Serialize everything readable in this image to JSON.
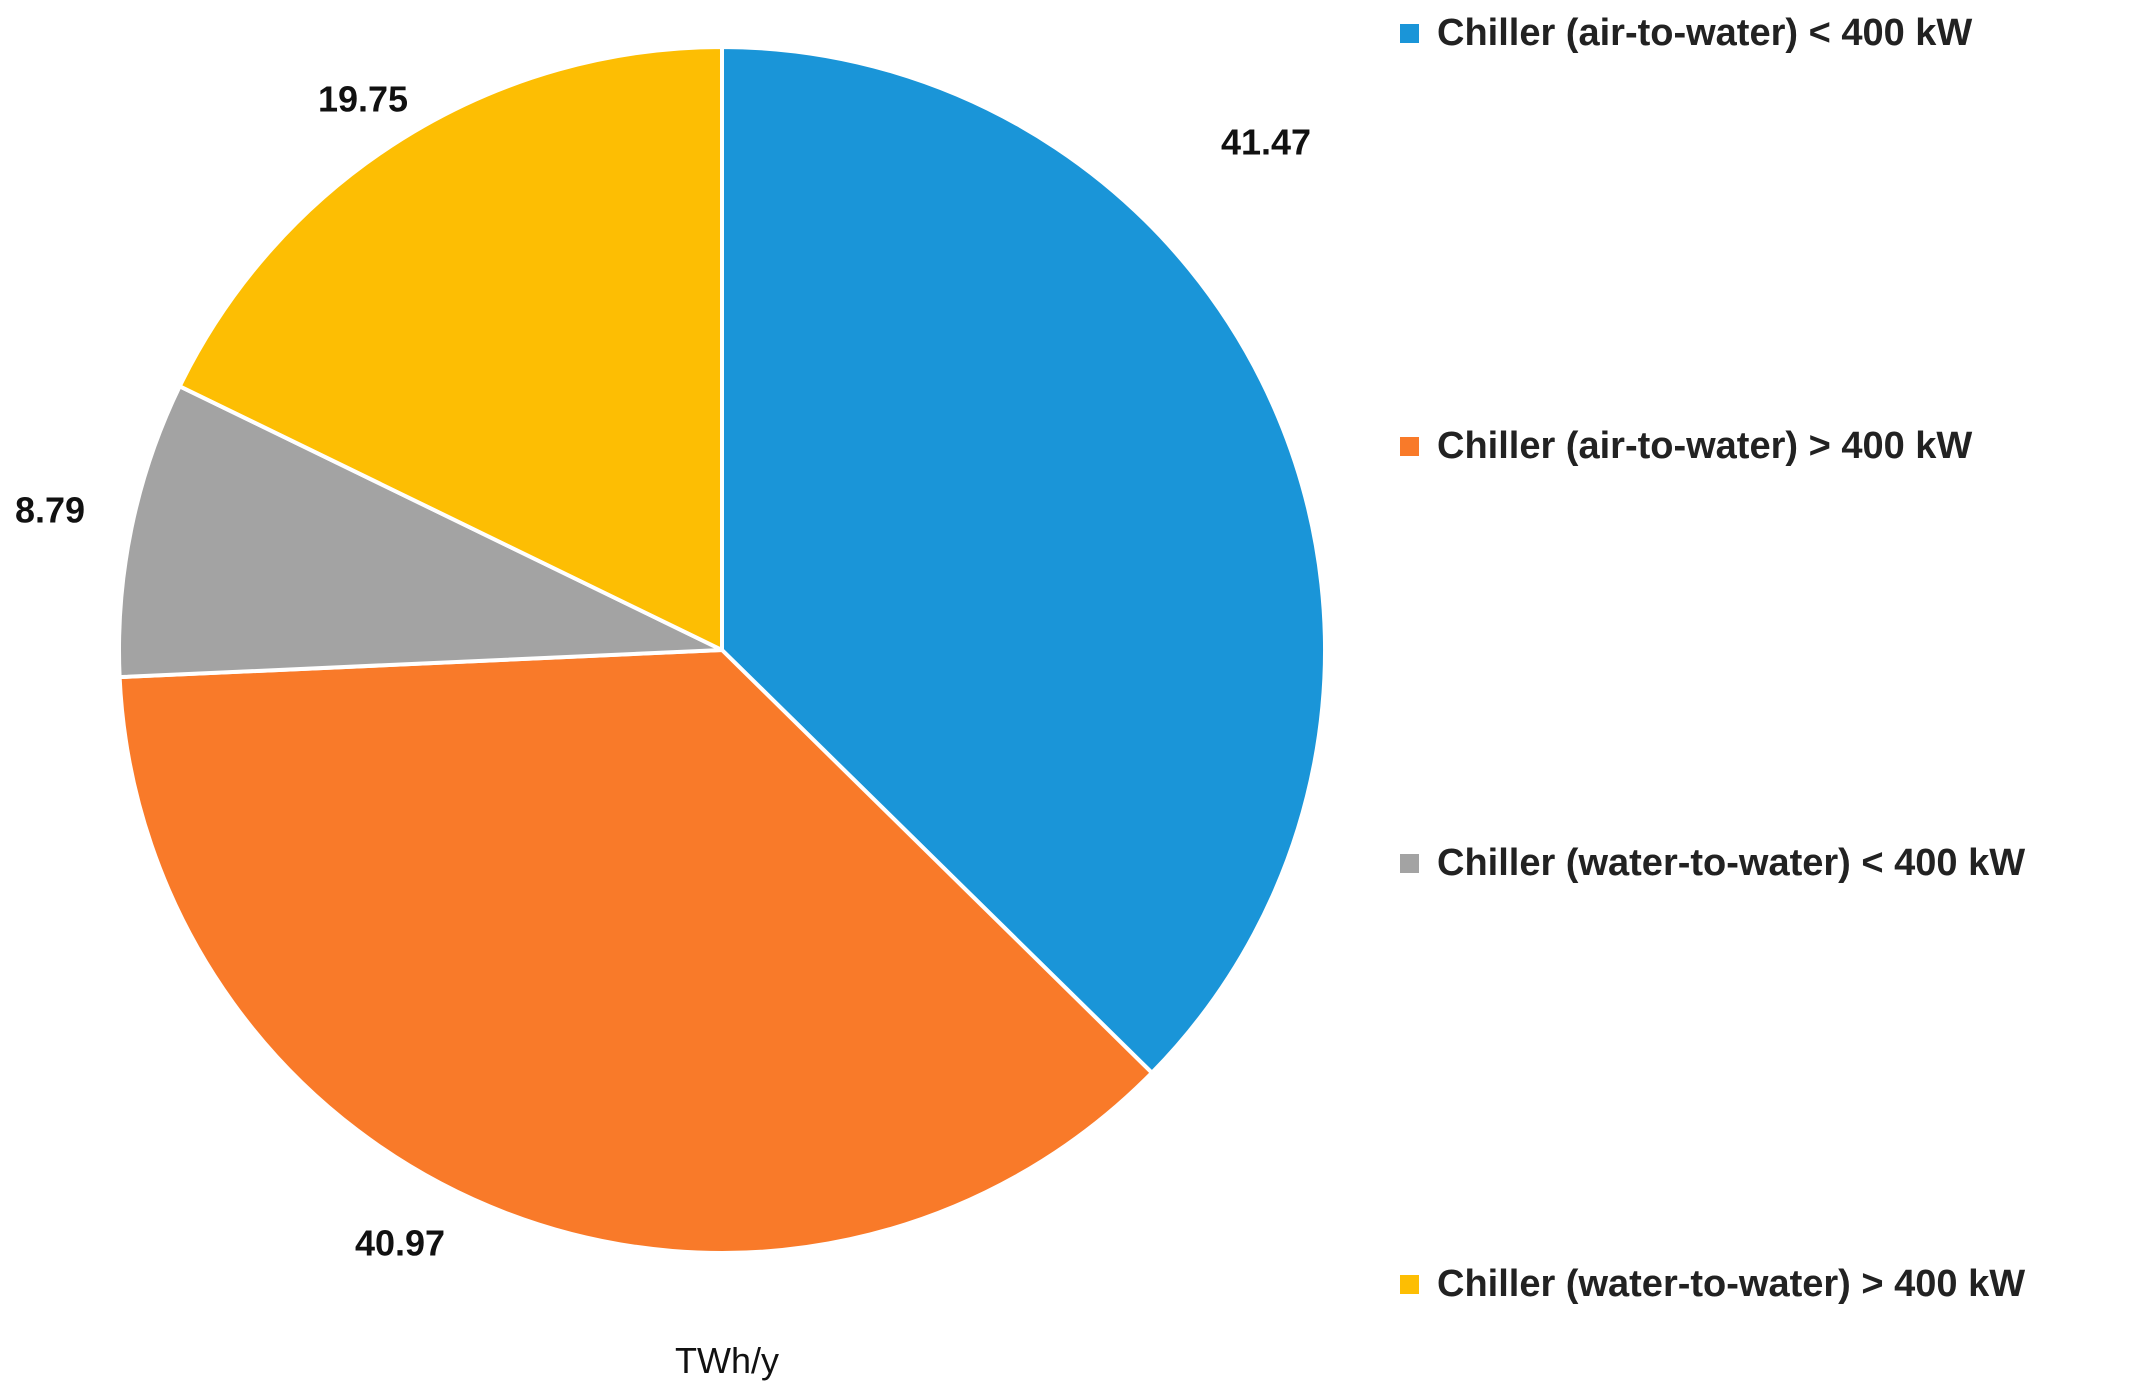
{
  "chart_data": {
    "type": "pie",
    "unit_label": "TWh/y",
    "start_angle_deg": 0,
    "direction": "clockwise",
    "slices": [
      {
        "label": "Chiller (air-to-water) < 400 kW",
        "value": 41.47,
        "value_label": "41.47",
        "color": "#1A95D8"
      },
      {
        "label": "Chiller (air-to-water) > 400 kW",
        "value": 40.97,
        "value_label": "40.97",
        "color": "#F97A29"
      },
      {
        "label": "Chiller (water-to-water) < 400 kW",
        "value": 8.79,
        "value_label": "8.79",
        "color": "#A3A3A3"
      },
      {
        "label": "Chiller (water-to-water) > 400 kW",
        "value": 19.75,
        "value_label": "19.75",
        "color": "#FDBE03"
      }
    ],
    "legend_position": "right"
  }
}
